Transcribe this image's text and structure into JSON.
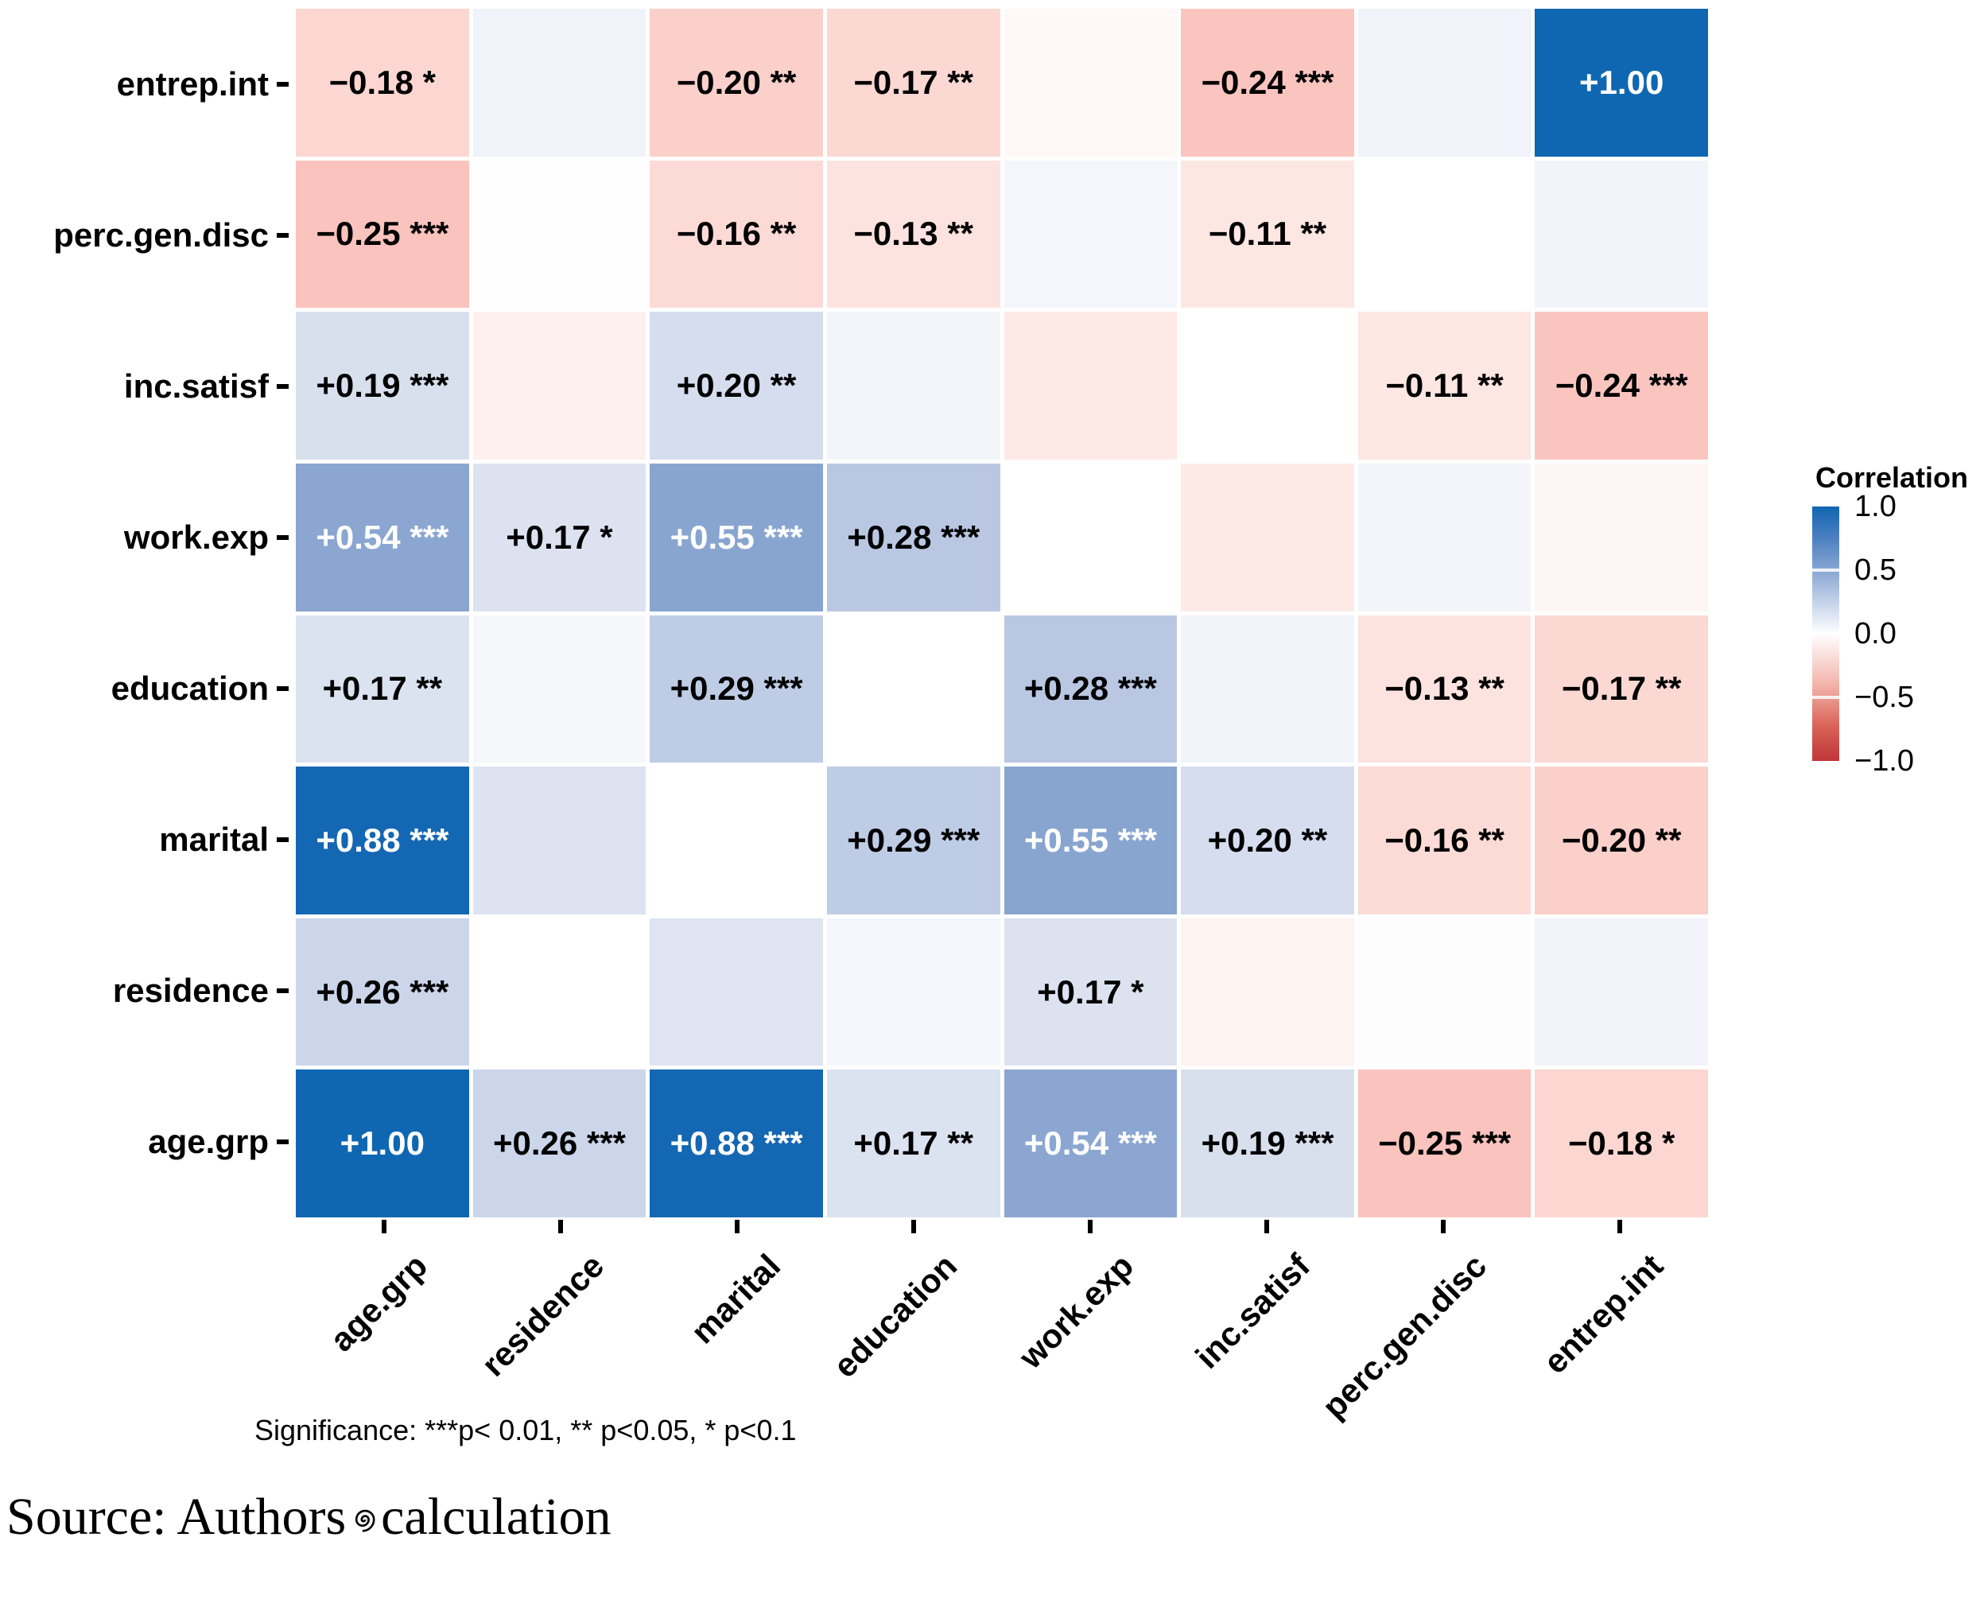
{
  "figure": {
    "significance_note": "Significance: ***p< 0.01, ** p<0.05, * p<0.1",
    "source": {
      "prefix": "Source: Authors",
      "symbol": "spiral",
      "suffix": "calculation"
    }
  },
  "legend": {
    "title": "Correlation",
    "tick_labels": [
      "1.0",
      "0.5",
      "0.0",
      "−0.5",
      "−1.0"
    ],
    "top_color": "#1065b1",
    "mid_color": "#ffffff",
    "bottom_color": "#c03538"
  },
  "chart_data": {
    "type": "heatmap",
    "title": "",
    "xlabel": "",
    "ylabel": "",
    "colorbar_range": [
      -1,
      1
    ],
    "legend_position": "right",
    "grid": "off",
    "note": "blank cells carry only a color tint; no printed coefficient",
    "x_categories": [
      "age.grp",
      "residence",
      "marital",
      "education",
      "work.exp",
      "inc.satisf",
      "perc.gen.disc",
      "entrep.int"
    ],
    "y_categories_top_to_bottom": [
      "entrep.int",
      "perc.gen.disc",
      "inc.satisf",
      "work.exp",
      "education",
      "marital",
      "residence",
      "age.grp"
    ],
    "rows": [
      {
        "name": "entrep.int",
        "cells": [
          {
            "label": "−0.18 *",
            "bg": "#fcd7d1"
          },
          {
            "label": "",
            "bg": "#f0f3fa"
          },
          {
            "label": "−0.20 **",
            "bg": "#fbd0ca"
          },
          {
            "label": "−0.17 **",
            "bg": "#fcd8d3"
          },
          {
            "label": "",
            "bg": "#fef8f6"
          },
          {
            "label": "−0.24 ***",
            "bg": "#fac5bf"
          },
          {
            "label": "",
            "bg": "#f0f3fa"
          },
          {
            "label": "+1.00",
            "bg": "#0f67b1",
            "fg": "#ffffff"
          }
        ]
      },
      {
        "name": "perc.gen.disc",
        "cells": [
          {
            "label": "−0.25 ***",
            "bg": "#fac3bd"
          },
          {
            "label": "",
            "bg": "#fffefe"
          },
          {
            "label": "−0.16 **",
            "bg": "#fcdbd6"
          },
          {
            "label": "−0.13 **",
            "bg": "#fde3df"
          },
          {
            "label": "",
            "bg": "#f4f6fb"
          },
          {
            "label": "−0.11 **",
            "bg": "#fde7e3"
          },
          {
            "label": "",
            "bg": "#ffffff"
          },
          {
            "label": "",
            "bg": "#f1f4fa"
          }
        ]
      },
      {
        "name": "inc.satisf",
        "cells": [
          {
            "label": "+0.19 ***",
            "bg": "#d8e0ee"
          },
          {
            "label": "",
            "bg": "#fdf0ed"
          },
          {
            "label": "+0.20 **",
            "bg": "#d5ddee"
          },
          {
            "label": "",
            "bg": "#f2f5fa"
          },
          {
            "label": "",
            "bg": "#fdeae6"
          },
          {
            "label": "",
            "bg": "#ffffff"
          },
          {
            "label": "−0.11 **",
            "bg": "#fde7e3"
          },
          {
            "label": "−0.24 ***",
            "bg": "#fac5bf"
          }
        ]
      },
      {
        "name": "work.exp",
        "cells": [
          {
            "label": "+0.54 ***",
            "bg": "#8aa6d1",
            "fg": "#ffffff"
          },
          {
            "label": "+0.17 *",
            "bg": "#dce2f0"
          },
          {
            "label": "+0.55 ***",
            "bg": "#88a5d0",
            "fg": "#ffffff"
          },
          {
            "label": "+0.28 ***",
            "bg": "#b9c7e2"
          },
          {
            "label": "",
            "bg": "#ffffff"
          },
          {
            "label": "",
            "bg": "#fdeae6"
          },
          {
            "label": "",
            "bg": "#f3f5fa"
          },
          {
            "label": "",
            "bg": "#fef6f4"
          }
        ]
      },
      {
        "name": "education",
        "cells": [
          {
            "label": "+0.17 **",
            "bg": "#dbe2f0"
          },
          {
            "label": "",
            "bg": "#f5f7fb"
          },
          {
            "label": "+0.29 ***",
            "bg": "#bfcce5"
          },
          {
            "label": "",
            "bg": "#ffffff"
          },
          {
            "label": "+0.28 ***",
            "bg": "#b9c7e2"
          },
          {
            "label": "",
            "bg": "#f1f4fa"
          },
          {
            "label": "−0.13 **",
            "bg": "#fde3df"
          },
          {
            "label": "−0.17 **",
            "bg": "#fcd8d3"
          }
        ]
      },
      {
        "name": "marital",
        "cells": [
          {
            "label": "+0.88 ***",
            "bg": "#1467b2",
            "fg": "#ffffff"
          },
          {
            "label": "",
            "bg": "#dde3f1"
          },
          {
            "label": "",
            "bg": "#ffffff"
          },
          {
            "label": "+0.29 ***",
            "bg": "#bfcce5"
          },
          {
            "label": "+0.55 ***",
            "bg": "#88a5d0",
            "fg": "#ffffff"
          },
          {
            "label": "+0.20 **",
            "bg": "#d5ddee"
          },
          {
            "label": "−0.16 **",
            "bg": "#fcdbd6"
          },
          {
            "label": "−0.20 **",
            "bg": "#fbd0ca"
          }
        ]
      },
      {
        "name": "residence",
        "cells": [
          {
            "label": "+0.26 ***",
            "bg": "#ccd6ea"
          },
          {
            "label": "",
            "bg": "#ffffff"
          },
          {
            "label": "",
            "bg": "#dee4f1"
          },
          {
            "label": "",
            "bg": "#f4f7fb"
          },
          {
            "label": "+0.17 *",
            "bg": "#dce2f0"
          },
          {
            "label": "",
            "bg": "#fdf3f1"
          },
          {
            "label": "",
            "bg": "#fefdfd"
          },
          {
            "label": "",
            "bg": "#f2f4fa"
          }
        ]
      },
      {
        "name": "age.grp",
        "cells": [
          {
            "label": "+1.00",
            "bg": "#0f67b1",
            "fg": "#ffffff"
          },
          {
            "label": "+0.26 ***",
            "bg": "#ccd6ea"
          },
          {
            "label": "+0.88 ***",
            "bg": "#1467b2",
            "fg": "#ffffff"
          },
          {
            "label": "+0.17 **",
            "bg": "#dbe2f0"
          },
          {
            "label": "+0.54 ***",
            "bg": "#8aa6d1",
            "fg": "#ffffff"
          },
          {
            "label": "+0.19 ***",
            "bg": "#d8e0ee"
          },
          {
            "label": "−0.25 ***",
            "bg": "#fac3bd"
          },
          {
            "label": "−0.18 *",
            "bg": "#fcd7d1"
          }
        ]
      }
    ]
  }
}
